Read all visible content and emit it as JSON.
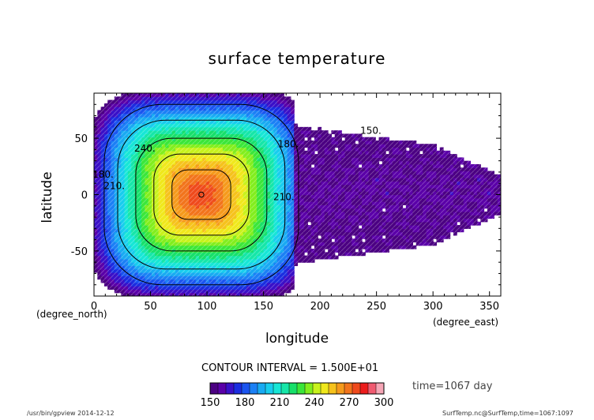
{
  "chart_data": {
    "type": "heatmap",
    "title": "surface temperature",
    "xlabel": "longitude",
    "ylabel": "latitude",
    "x_unit": "(degree_east)",
    "y_unit": "(degree_north)",
    "xlim": [
      0,
      360
    ],
    "ylim": [
      -90,
      90
    ],
    "x_ticks": [
      0,
      50,
      100,
      150,
      200,
      250,
      300,
      350
    ],
    "y_ticks": [
      -50,
      0,
      50
    ],
    "hot_spot": {
      "lon": 95,
      "lat": 0
    },
    "warm_region_lon": [
      0,
      180
    ],
    "cold_tongue_lat": [
      -60,
      60
    ],
    "contour_labels": [
      {
        "text": "180.",
        "lon": 8,
        "lat": 15
      },
      {
        "text": "210.",
        "lon": 18,
        "lat": 5
      },
      {
        "text": "240.",
        "lon": 45,
        "lat": 38
      },
      {
        "text": "210.",
        "lon": 168,
        "lat": -5
      },
      {
        "text": "180.",
        "lon": 172,
        "lat": 42
      },
      {
        "text": "150.",
        "lon": 245,
        "lat": 54
      }
    ],
    "contour_interval_text": "CONTOUR INTERVAL = 1.500E+01",
    "time_text": "time=1067 day",
    "colorbar": {
      "min": 150,
      "max": 300,
      "tick_labels": [
        150,
        180,
        210,
        240,
        270,
        300
      ],
      "colors": [
        "#4b0082",
        "#5a00a8",
        "#3a10c8",
        "#1b2de0",
        "#1b55f0",
        "#1b80f5",
        "#19aaf2",
        "#18cdee",
        "#17e6d6",
        "#16e6a8",
        "#17e06a",
        "#3be63a",
        "#82ee1e",
        "#c8f21c",
        "#f0e81c",
        "#f6c21c",
        "#f59a1c",
        "#f2741c",
        "#ef4a1c",
        "#ec1c1c",
        "#f05a70",
        "#f6a6b6"
      ]
    }
  },
  "footer": {
    "left": "/usr/bin/gpview  2014-12-12",
    "right": "SurfTemp.nc@SurfTemp,time=1067:1097"
  }
}
